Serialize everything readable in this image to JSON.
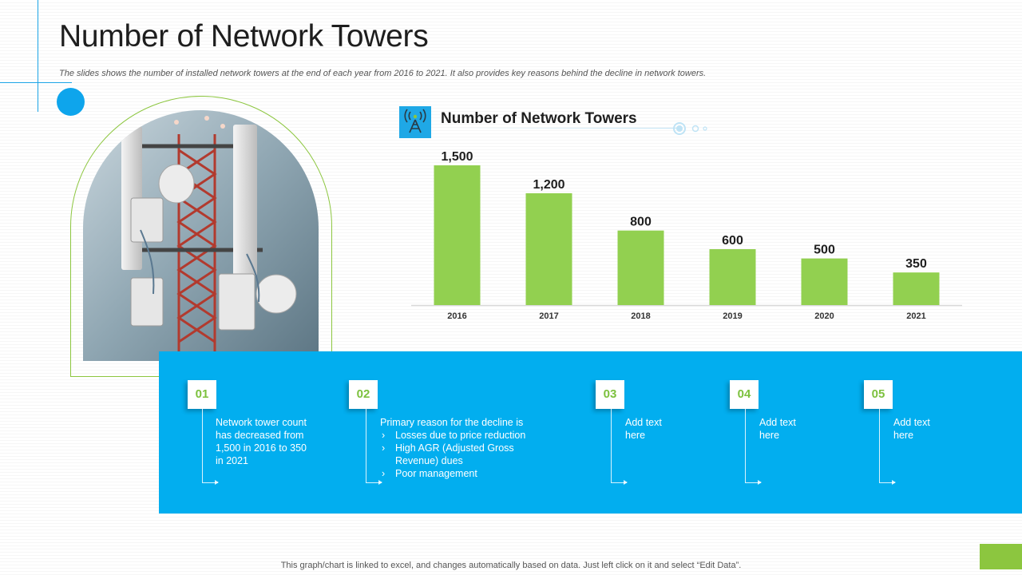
{
  "page": {
    "title": "Number of Network Towers",
    "subtitle": "The slides shows the number of installed network towers at the end of each year from 2016 to  2021. It also provides key reasons behind the decline in network towers.",
    "footnote": "This graph/chart is linked to excel,  and changes automatically based on data. Just left click on it and select “Edit Data”."
  },
  "chart_header": {
    "title": "Number of Network Towers",
    "icon": "tower-antenna-icon"
  },
  "chart_data": {
    "type": "bar",
    "title": "Number of Network Towers",
    "categories": [
      "2016",
      "2017",
      "2018",
      "2019",
      "2020",
      "2021"
    ],
    "values": [
      1500,
      1200,
      800,
      600,
      500,
      350
    ],
    "value_labels": [
      "1,500",
      "1,200",
      "800",
      "600",
      "500",
      "350"
    ],
    "ylim": [
      0,
      1500
    ],
    "bar_color": "#92d050",
    "grid": false,
    "legend": "none"
  },
  "steps": [
    {
      "number": "01",
      "text": "Network tower count has decreased from 1,500 in 2016 to 350 in 2021"
    },
    {
      "number": "02",
      "intro": "Primary reason for the decline is",
      "bullets": [
        "Losses due to price reduction",
        "High AGR (Adjusted Gross Revenue)  dues",
        "Poor management"
      ]
    },
    {
      "number": "03",
      "text": "Add text here"
    },
    {
      "number": "04",
      "text": "Add text here"
    },
    {
      "number": "05",
      "text": "Add text here"
    }
  ],
  "colors": {
    "accent_blue": "#02aeef",
    "accent_green": "#8cc63f",
    "bar_green": "#92d050"
  }
}
